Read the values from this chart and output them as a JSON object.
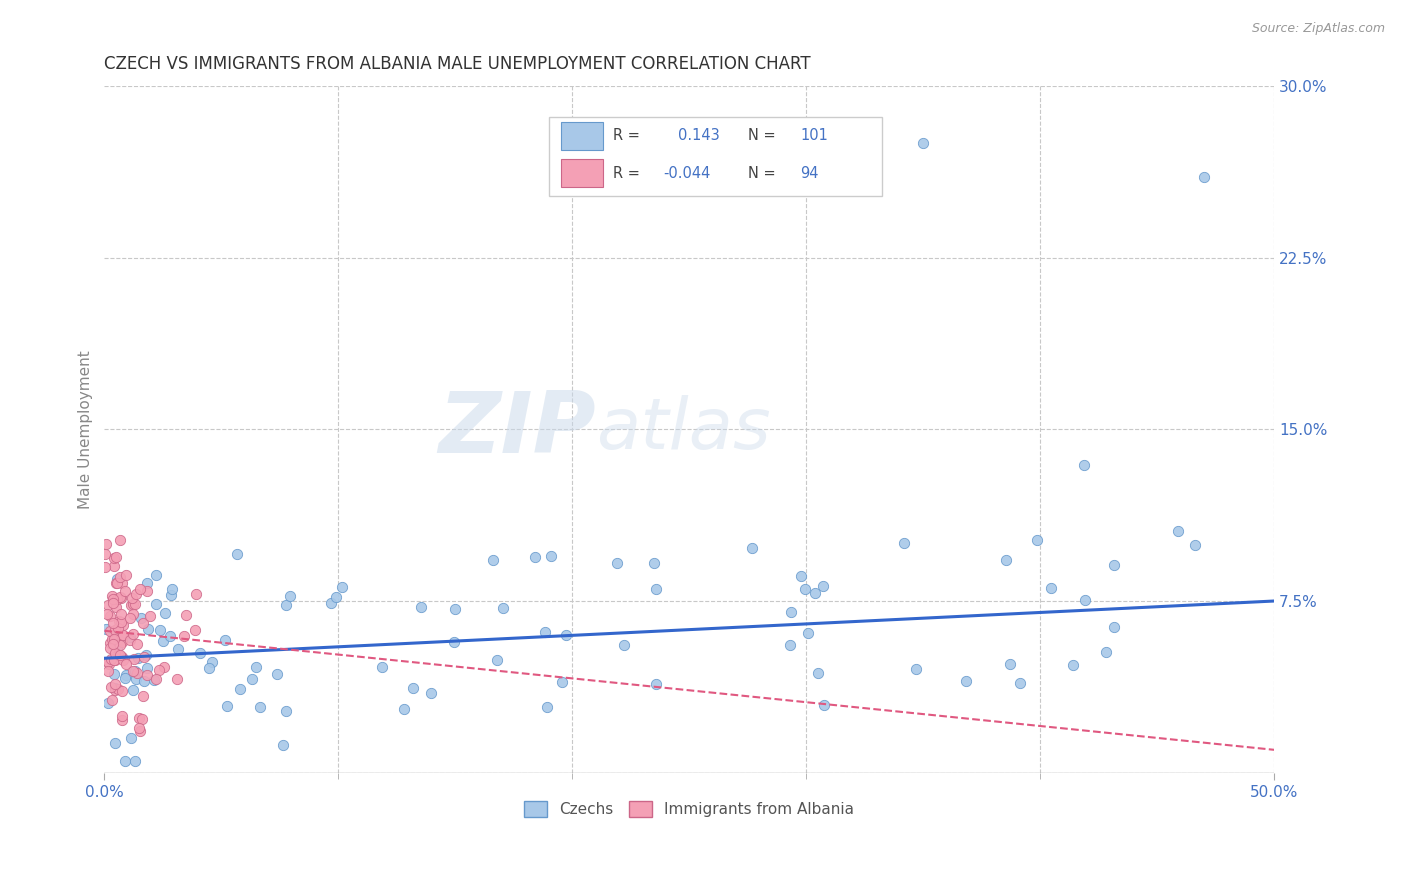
{
  "title": "CZECH VS IMMIGRANTS FROM ALBANIA MALE UNEMPLOYMENT CORRELATION CHART",
  "source": "Source: ZipAtlas.com",
  "ylabel": "Male Unemployment",
  "watermark_zip": "ZIP",
  "watermark_atlas": "atlas",
  "xmin": 0.0,
  "xmax": 0.5,
  "ymin": 0.0,
  "ymax": 0.3,
  "ytick_vals": [
    0.0,
    0.075,
    0.15,
    0.225,
    0.3
  ],
  "ytick_labels": [
    "",
    "7.5%",
    "15.0%",
    "22.5%",
    "30.0%"
  ],
  "xtick_vals": [
    0.0,
    0.5
  ],
  "xtick_labels": [
    "0.0%",
    "50.0%"
  ],
  "grid_color": "#c8c8c8",
  "background_color": "#ffffff",
  "czechs_line_color": "#3366cc",
  "albania_line_color": "#e05880",
  "scatter_color_czechs": "#a8c8e8",
  "scatter_edge_czechs": "#6699cc",
  "scatter_color_albania": "#f4a0b5",
  "scatter_edge_albania": "#cc6688",
  "czechs_line_y0": 0.05,
  "czechs_line_y1": 0.075,
  "albania_line_y0": 0.062,
  "albania_line_y1": 0.01,
  "legend_R_czechs": "0.143",
  "legend_N_czechs": "101",
  "legend_R_albania": "-0.044",
  "legend_N_albania": "94",
  "tick_label_color": "#4472c4",
  "ylabel_color": "#888888",
  "title_color": "#333333",
  "source_color": "#999999"
}
